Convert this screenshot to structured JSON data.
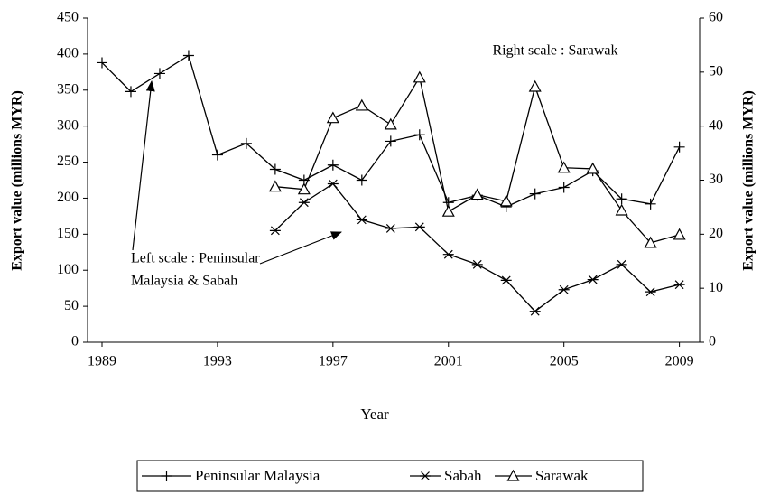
{
  "chart_data": {
    "type": "line",
    "x_label": "Year",
    "y_label": "Export value (millions MYR)",
    "y2_label": "Export value (millions MYR)",
    "annotations": [
      "Right scale : Sarawak",
      "Left scale : Peninsular",
      "Malaysia & Sabah"
    ],
    "x": [
      1989,
      1990,
      1991,
      1992,
      1993,
      1994,
      1995,
      1996,
      1997,
      1998,
      1999,
      2000,
      2001,
      2002,
      2003,
      2004,
      2005,
      2006,
      2007,
      2008,
      2009
    ],
    "xlim": [
      1988.5,
      2009.7
    ],
    "xticks": [
      1989,
      1993,
      1997,
      2001,
      2005,
      2009
    ],
    "ylim": [
      0,
      450
    ],
    "yticks": [
      0,
      50,
      100,
      150,
      200,
      250,
      300,
      350,
      400,
      450
    ],
    "y2lim": [
      0,
      60
    ],
    "y2ticks": [
      0,
      10,
      20,
      30,
      40,
      50,
      60
    ],
    "grid": false,
    "legend": "bottom",
    "series": [
      {
        "name": "Peninsular Malaysia",
        "color": "#000000",
        "marker": "plus",
        "values": [
          388,
          348,
          373,
          398,
          260,
          276,
          240,
          225,
          246,
          225,
          279,
          288,
          194,
          204,
          188,
          206,
          215,
          238,
          199,
          192,
          271
        ]
      },
      {
        "name": "Sabah",
        "color": "#000000",
        "marker": "asterisk",
        "values": [
          null,
          null,
          null,
          null,
          null,
          null,
          155,
          194,
          220,
          170,
          158,
          160,
          122,
          108,
          86,
          43,
          73,
          87,
          108,
          70,
          80
        ]
      },
      {
        "name": "Sarawak",
        "color": "#000000",
        "marker": "triangle",
        "axis": "y2",
        "values": [
          null,
          null,
          null,
          null,
          null,
          null,
          28.8,
          28.3,
          41.5,
          43.8,
          40.3,
          49,
          24.2,
          27.3,
          26.1,
          47.3,
          32.3,
          32.1,
          24.4,
          18.4,
          19.9
        ]
      }
    ]
  }
}
